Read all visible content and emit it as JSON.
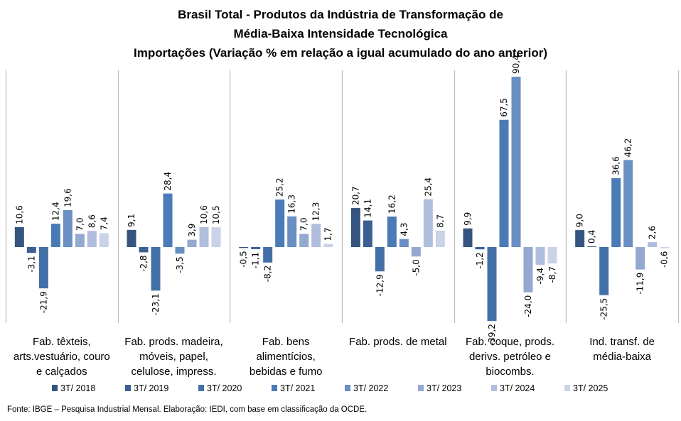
{
  "chart_data": {
    "type": "bar",
    "title": [
      "Brasil Total - Produtos da Indústria de Transformação de",
      "Média-Baixa Intensidade Tecnológica",
      "Importações (Variação % em relação a igual acumulado do ano anterior)"
    ],
    "xlabel": "",
    "ylabel": "",
    "ylim": [
      -42,
      95
    ],
    "grid": false,
    "legend_position": "bottom",
    "categories": [
      [
        "Fab. têxteis,",
        "arts.vestuário, couro",
        "e calçados"
      ],
      [
        "Fab. prods. madeira,",
        "móveis, papel,",
        "celulose, impress."
      ],
      [
        "Fab. bens",
        "alimentícios,",
        "bebidas e fumo"
      ],
      [
        "Fab. prods. de metal"
      ],
      [
        "Fab. coque, prods.",
        "derivs. petróleo e",
        "biocombs."
      ],
      [
        "Ind. transf. de",
        "média-baixa"
      ]
    ],
    "series": [
      {
        "name": "3T/ 2018",
        "color": "#34557f",
        "values": [
          10.6,
          9.1,
          -0.5,
          20.7,
          9.9,
          9.0
        ]
      },
      {
        "name": "3T/ 2019",
        "color": "#3c5f92",
        "values": [
          -3.1,
          -2.8,
          -1.1,
          14.1,
          -1.2,
          0.4
        ]
      },
      {
        "name": "3T/ 2020",
        "color": "#4370a6",
        "values": [
          -21.9,
          -23.1,
          -8.2,
          -12.9,
          -39.2,
          -25.5
        ]
      },
      {
        "name": "3T/ 2021",
        "color": "#4a7bb7",
        "values": [
          12.4,
          28.4,
          25.2,
          16.2,
          67.5,
          36.6
        ]
      },
      {
        "name": "3T/ 2022",
        "color": "#6a8fc2",
        "values": [
          19.6,
          -3.5,
          16.3,
          4.3,
          90.4,
          46.2
        ]
      },
      {
        "name": "3T/ 2023",
        "color": "#94a8d0",
        "values": [
          7.0,
          3.9,
          7.0,
          -5.0,
          -24.0,
          -11.9
        ]
      },
      {
        "name": "3T/ 2024",
        "color": "#afbedc",
        "values": [
          8.6,
          10.6,
          12.3,
          25.4,
          -9.4,
          2.6
        ]
      },
      {
        "name": "3T/ 2025",
        "color": "#c9d2e6",
        "values": [
          7.4,
          10.5,
          1.7,
          8.7,
          -8.7,
          -0.6
        ]
      }
    ],
    "value_labels": [
      [
        "10,6",
        "9,1",
        "-0,5",
        "20,7",
        "9,9",
        "9,0"
      ],
      [
        "-3,1",
        "-2,8",
        "-1,1",
        "14,1",
        "-1,2",
        "0,4"
      ],
      [
        "-21,9",
        "-23,1",
        "-8,2",
        "-12,9",
        "-39,2",
        "-25,5"
      ],
      [
        "12,4",
        "28,4",
        "25,2",
        "16,2",
        "67,5",
        "36,6"
      ],
      [
        "19,6",
        "-3,5",
        "16,3",
        "4,3",
        "90,4",
        "46,2"
      ],
      [
        "7,0",
        "3,9",
        "7,0",
        "-5,0",
        "-24,0",
        "-11,9"
      ],
      [
        "8,6",
        "10,6",
        "12,3",
        "25,4",
        "-9,4",
        "2,6"
      ],
      [
        "7,4",
        "10,5",
        "1,7",
        "8,7",
        "-8,7",
        "-0,6"
      ]
    ]
  },
  "source_note": "Fonte: IBGE – Pesquisa Industrial Mensal. Elaboração: IEDI, com base em classificação da OCDE."
}
